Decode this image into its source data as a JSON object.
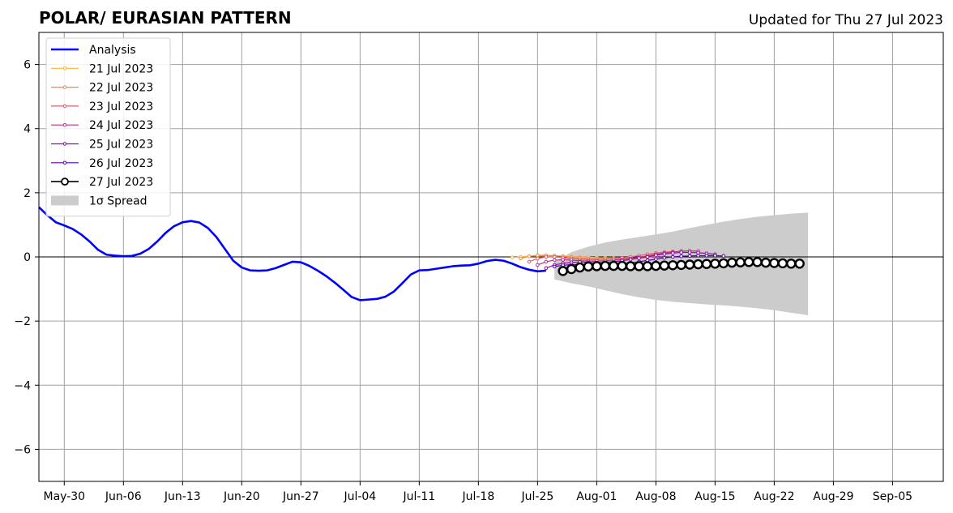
{
  "chart_data": {
    "type": "line",
    "title": "POLAR/ EURASIAN  PATTERN",
    "subtitle": "Updated for Thu 27 Jul 2023",
    "ylim": [
      -7,
      7
    ],
    "y_ticks": [
      -6,
      -4,
      -2,
      0,
      2,
      4,
      6
    ],
    "y_tick_labels": [
      "−6",
      "−4",
      "−2",
      "0",
      "2",
      "4",
      "6"
    ],
    "xlim": [
      "2023-05-27",
      "2023-09-11"
    ],
    "x_ticks": [
      "2023-05-30",
      "2023-06-06",
      "2023-06-13",
      "2023-06-20",
      "2023-06-27",
      "2023-07-04",
      "2023-07-11",
      "2023-07-18",
      "2023-07-25",
      "2023-08-01",
      "2023-08-08",
      "2023-08-15",
      "2023-08-22",
      "2023-08-29",
      "2023-09-05"
    ],
    "x_tick_labels": [
      "May-30",
      "Jun-06",
      "Jun-13",
      "Jun-20",
      "Jun-27",
      "Jul-04",
      "Jul-11",
      "Jul-18",
      "Jul-25",
      "Aug-01",
      "Aug-08",
      "Aug-15",
      "Aug-22",
      "Aug-29",
      "Sep-05"
    ],
    "grid": true,
    "legend_position": "top-left",
    "analysis": {
      "name": "Analysis",
      "color": "#0000ff",
      "x": [
        "2023-05-27",
        "2023-05-28",
        "2023-05-29",
        "2023-05-30",
        "2023-05-31",
        "2023-06-01",
        "2023-06-02",
        "2023-06-03",
        "2023-06-04",
        "2023-06-05",
        "2023-06-06",
        "2023-06-07",
        "2023-06-08",
        "2023-06-09",
        "2023-06-10",
        "2023-06-11",
        "2023-06-12",
        "2023-06-13",
        "2023-06-14",
        "2023-06-15",
        "2023-06-16",
        "2023-06-17",
        "2023-06-18",
        "2023-06-19",
        "2023-06-20",
        "2023-06-21",
        "2023-06-22",
        "2023-06-23",
        "2023-06-24",
        "2023-06-25",
        "2023-06-26",
        "2023-06-27",
        "2023-06-28",
        "2023-06-29",
        "2023-06-30",
        "2023-07-01",
        "2023-07-02",
        "2023-07-03",
        "2023-07-04",
        "2023-07-05",
        "2023-07-06",
        "2023-07-07",
        "2023-07-08",
        "2023-07-09",
        "2023-07-10",
        "2023-07-11",
        "2023-07-12",
        "2023-07-13",
        "2023-07-14",
        "2023-07-15",
        "2023-07-16",
        "2023-07-17",
        "2023-07-18",
        "2023-07-19",
        "2023-07-20",
        "2023-07-21",
        "2023-07-22",
        "2023-07-23",
        "2023-07-24",
        "2023-07-25",
        "2023-07-26"
      ],
      "values": [
        1.55,
        1.3,
        1.08,
        0.98,
        0.87,
        0.7,
        0.48,
        0.22,
        0.07,
        0.04,
        0.02,
        0.03,
        0.1,
        0.25,
        0.48,
        0.75,
        0.96,
        1.08,
        1.12,
        1.07,
        0.9,
        0.62,
        0.25,
        -0.12,
        -0.33,
        -0.42,
        -0.43,
        -0.42,
        -0.35,
        -0.25,
        -0.15,
        -0.17,
        -0.28,
        -0.43,
        -0.6,
        -0.8,
        -1.02,
        -1.25,
        -1.35,
        -1.33,
        -1.31,
        -1.24,
        -1.08,
        -0.82,
        -0.55,
        -0.42,
        -0.41,
        -0.37,
        -0.33,
        -0.29,
        -0.27,
        -0.26,
        -0.21,
        -0.13,
        -0.09,
        -0.12,
        -0.21,
        -0.32,
        -0.4,
        -0.45,
        -0.43
      ]
    },
    "spread": {
      "name": "1σ Spread",
      "color": "#cccccc",
      "x": [
        "2023-07-27",
        "2023-07-29",
        "2023-07-31",
        "2023-08-02",
        "2023-08-04",
        "2023-08-06",
        "2023-08-08",
        "2023-08-10",
        "2023-08-12",
        "2023-08-14",
        "2023-08-16",
        "2023-08-18",
        "2023-08-20",
        "2023-08-22",
        "2023-08-24",
        "2023-08-26"
      ],
      "upper": [
        -0.15,
        0.15,
        0.32,
        0.45,
        0.54,
        0.62,
        0.7,
        0.79,
        0.9,
        1.0,
        1.1,
        1.18,
        1.25,
        1.3,
        1.35,
        1.38
      ],
      "lower": [
        -0.7,
        -0.82,
        -0.92,
        -1.04,
        -1.16,
        -1.26,
        -1.34,
        -1.4,
        -1.44,
        -1.48,
        -1.51,
        -1.55,
        -1.6,
        -1.66,
        -1.74,
        -1.82
      ]
    },
    "series": [
      {
        "name": "21 Jul 2023",
        "color": "#fdb62f",
        "start": "2023-07-22",
        "values": [
          -0.02,
          0.0,
          0.02,
          0.03,
          0.03,
          0.03,
          0.02,
          0.01,
          0.0,
          -0.01,
          -0.02,
          -0.03,
          -0.04,
          -0.04,
          -0.04,
          -0.03,
          -0.02
        ]
      },
      {
        "name": "22 Jul 2023",
        "color": "#f48849",
        "start": "2023-07-23",
        "values": [
          -0.05,
          0.02,
          0.05,
          0.05,
          0.04,
          0.02,
          -0.01,
          -0.03,
          -0.05,
          -0.06,
          -0.06,
          -0.06,
          -0.05,
          -0.04,
          -0.02,
          0.0,
          0.02
        ]
      },
      {
        "name": "23 Jul 2023",
        "color": "#dd5e66",
        "start": "2023-07-24",
        "values": [
          -0.15,
          -0.05,
          0.0,
          0.0,
          -0.02,
          -0.05,
          -0.07,
          -0.08,
          -0.08,
          -0.07,
          -0.05,
          -0.03,
          0.0,
          0.04,
          0.08,
          0.12,
          0.15,
          0.17
        ]
      },
      {
        "name": "24 Jul 2023",
        "color": "#b6308b",
        "start": "2023-07-25",
        "values": [
          -0.25,
          -0.15,
          -0.1,
          -0.09,
          -0.1,
          -0.12,
          -0.13,
          -0.13,
          -0.12,
          -0.1,
          -0.08,
          -0.05,
          -0.01,
          0.03,
          0.08,
          0.12,
          0.15,
          0.18,
          0.19,
          0.18
        ]
      },
      {
        "name": "25 Jul 2023",
        "color": "#8f0da4",
        "start": "2023-07-26",
        "values": [
          -0.35,
          -0.25,
          -0.2,
          -0.17,
          -0.16,
          -0.17,
          -0.18,
          -0.17,
          -0.15,
          -0.12,
          -0.08,
          -0.04,
          0.0,
          0.05,
          0.09,
          0.12,
          0.14,
          0.14,
          0.13,
          0.11,
          0.08
        ]
      },
      {
        "name": "26 Jul 2023",
        "color": "#5c01a6",
        "start": "2023-07-27",
        "values": [
          -0.3,
          -0.26,
          -0.24,
          -0.24,
          -0.24,
          -0.25,
          -0.25,
          -0.24,
          -0.22,
          -0.19,
          -0.15,
          -0.11,
          -0.07,
          -0.03,
          0.0,
          0.02,
          0.03,
          0.04,
          0.04,
          0.04,
          0.03
        ]
      },
      {
        "name": "27 Jul 2023",
        "color": "#000000",
        "start": "2023-07-28",
        "values": [
          -0.44,
          -0.38,
          -0.33,
          -0.3,
          -0.29,
          -0.28,
          -0.28,
          -0.28,
          -0.29,
          -0.29,
          -0.29,
          -0.28,
          -0.27,
          -0.26,
          -0.25,
          -0.24,
          -0.23,
          -0.22,
          -0.21,
          -0.2,
          -0.18,
          -0.17,
          -0.16,
          -0.16,
          -0.18,
          -0.19,
          -0.2,
          -0.21,
          -0.21
        ]
      }
    ]
  }
}
